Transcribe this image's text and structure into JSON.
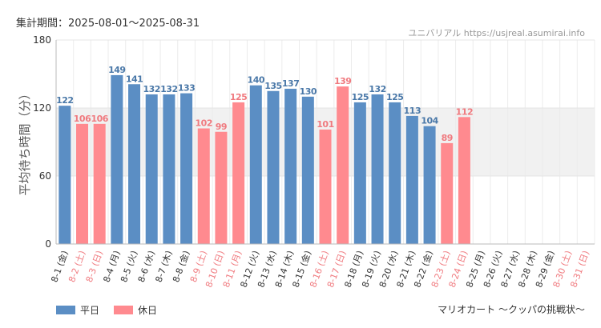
{
  "header": {
    "period": "集計期間：2025-08-01〜2025-08-31",
    "source": "ユニバリアル  https://usjreal.asumirai.info"
  },
  "footer": {
    "attraction": "マリオカート 〜クッパの挑戦状〜"
  },
  "colors": {
    "weekday": "#5b8ec4",
    "holiday": "#ff8a8f",
    "weekday_label": "#4a78a8",
    "holiday_label": "#f07a7f",
    "band": "#f1f1f1"
  },
  "chart_data": {
    "type": "bar",
    "ylabel": "平均待ち時間（分）",
    "ylim": [
      0,
      180
    ],
    "yticks": [
      0,
      60,
      120,
      180
    ],
    "grid": true,
    "legend_position": "bottom-left",
    "series": [
      {
        "name": "平日",
        "key": "weekday"
      },
      {
        "name": "休日",
        "key": "holiday"
      }
    ],
    "categories": [
      "8-1 (金)",
      "8-2 (土)",
      "8-3 (日)",
      "8-4 (月)",
      "8-5 (火)",
      "8-6 (水)",
      "8-7 (木)",
      "8-8 (金)",
      "8-9 (土)",
      "8-10 (日)",
      "8-11 (月)",
      "8-12 (火)",
      "8-13 (水)",
      "8-14 (木)",
      "8-15 (金)",
      "8-16 (土)",
      "8-17 (日)",
      "8-18 (月)",
      "8-19 (火)",
      "8-20 (水)",
      "8-21 (木)",
      "8-22 (金)",
      "8-23 (土)",
      "8-24 (日)",
      "8-25 (月)",
      "8-26 (火)",
      "8-27 (水)",
      "8-28 (木)",
      "8-29 (金)",
      "8-30 (土)",
      "8-31 (日)"
    ],
    "day_type": [
      "weekday",
      "holiday",
      "holiday",
      "weekday",
      "weekday",
      "weekday",
      "weekday",
      "weekday",
      "holiday",
      "holiday",
      "holiday",
      "weekday",
      "weekday",
      "weekday",
      "weekday",
      "holiday",
      "holiday",
      "weekday",
      "weekday",
      "weekday",
      "weekday",
      "weekday",
      "holiday",
      "holiday",
      "weekday",
      "weekday",
      "weekday",
      "weekday",
      "weekday",
      "holiday",
      "holiday"
    ],
    "values": [
      122,
      106,
      106,
      149,
      141,
      132,
      132,
      133,
      102,
      99,
      125,
      140,
      135,
      137,
      130,
      101,
      139,
      125,
      132,
      125,
      113,
      104,
      89,
      112,
      null,
      null,
      null,
      null,
      null,
      null,
      null
    ]
  }
}
